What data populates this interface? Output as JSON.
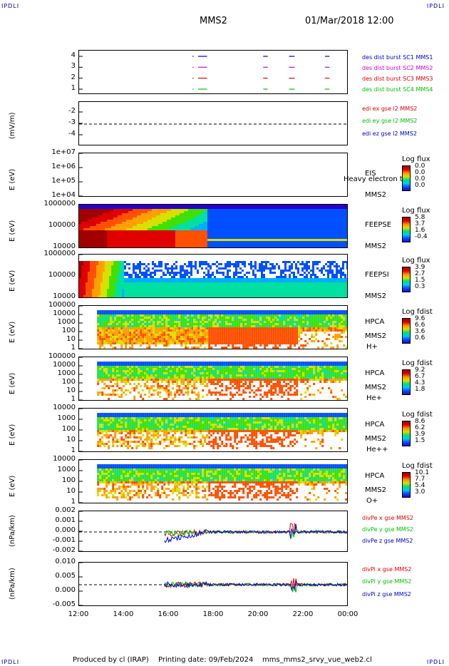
{
  "corners": {
    "top_left": "IPDLI",
    "top_right": "IPDLI",
    "bottom_left": "IPDLI",
    "bottom_right": "IPDLI"
  },
  "header": {
    "spacecraft": "MMS2",
    "datetime": "01/Mar/2018 12:00"
  },
  "footer": {
    "produced": "Produced by cl (IRAP)",
    "printed": "Printing date: 09/Feb/2024",
    "file": "mms_mms2_srvy_vue_web2.cl"
  },
  "colors": {
    "red": "#e00000",
    "green": "#00c000",
    "blue": "#0000c8",
    "magenta": "#d000d0"
  },
  "chart_data": [
    {
      "type": "scatter",
      "name": "des dist burst availability",
      "yticks": [
        "1",
        "2",
        "3",
        "4"
      ],
      "labels": [
        {
          "text": "des dist burst SC1 MMS1",
          "color": "#0000c8"
        },
        {
          "text": "des dist burst SC2 MMS2",
          "color": "#d000d0"
        },
        {
          "text": "des dist burst SC3 MMS3",
          "color": "#e00000"
        },
        {
          "text": "des dist burst SC4 MMS4",
          "color": "#00c000"
        }
      ],
      "segments_hours": [
        [
          17.05,
          17.1
        ],
        [
          17.3,
          17.7
        ],
        [
          20.2,
          20.4
        ],
        [
          21.35,
          21.6
        ],
        [
          22.95,
          23.15
        ]
      ]
    },
    {
      "type": "line",
      "ylabel": "(mV/m)",
      "yticks": [
        "-2",
        "-3",
        "-4"
      ],
      "labels": [
        {
          "text": "edi ex gse l2 MMS2",
          "color": "#e00000"
        },
        {
          "text": "edi ey gse l2 MMS2",
          "color": "#00c000"
        },
        {
          "text": "edi ez gse l2 MMS2",
          "color": "#0000c8"
        }
      ]
    },
    {
      "type": "heatmap",
      "ylabel": "E (eV)",
      "yticks": [
        "1e+07",
        "1e+06",
        "1e+05",
        "1e+04"
      ],
      "inst": "EIS",
      "sc": "MMS2",
      "note": "Heavy electron tof",
      "cbar_title": "Log flux",
      "cbar_ticks": [
        "0.0",
        "0.0",
        "0.0",
        "0.0"
      ]
    },
    {
      "type": "heatmap",
      "ylabel": "E (eV)",
      "yticks": [
        "1000000",
        "100000",
        "10000"
      ],
      "inst": "FEEPSE",
      "sc": "MMS2",
      "cbar_title": "Log flux",
      "cbar_ticks": [
        "5.8",
        "3.7",
        "1.6",
        "-0.4"
      ]
    },
    {
      "type": "heatmap",
      "ylabel": "E (eV)",
      "yticks": [
        "1000000",
        "100000",
        "10000"
      ],
      "inst": "FEEPSI",
      "sc": "MMS2",
      "cbar_title": "Log flux",
      "cbar_ticks": [
        "3.9",
        "2.7",
        "1.5",
        "0.3"
      ]
    },
    {
      "type": "heatmap",
      "ylabel": "E (eV)",
      "yticks": [
        "100000",
        "10000",
        "1000",
        "100",
        "10",
        "1"
      ],
      "inst": "HPCA",
      "sc": "MMS2",
      "species": "H+",
      "cbar_title": "Log fdist",
      "cbar_ticks": [
        "9.6",
        "6.6",
        "3.6",
        "0.6"
      ]
    },
    {
      "type": "heatmap",
      "ylabel": "E (eV)",
      "yticks": [
        "100000",
        "10000",
        "1000",
        "100",
        "10",
        "1"
      ],
      "inst": "HPCA",
      "sc": "MMS2",
      "species": "He+",
      "cbar_title": "Log fdist",
      "cbar_ticks": [
        "9.2",
        "6.7",
        "4.3",
        "1.8"
      ]
    },
    {
      "type": "heatmap",
      "ylabel": "E (eV)",
      "yticks": [
        "10000",
        "1000",
        "100",
        "10",
        "1"
      ],
      "inst": "HPCA",
      "sc": "MMS2",
      "species": "He++",
      "cbar_title": "Log fdist",
      "cbar_ticks": [
        "8.6",
        "6.2",
        "3.9",
        "1.5"
      ]
    },
    {
      "type": "heatmap",
      "ylabel": "E (eV)",
      "yticks": [
        "10000",
        "1000",
        "100",
        "10",
        "1"
      ],
      "inst": "HPCA",
      "sc": "MMS2",
      "species": "O+",
      "cbar_title": "Log fdist",
      "cbar_ticks": [
        "10.1",
        "7.7",
        "5.4",
        "3.0"
      ]
    },
    {
      "type": "line",
      "ylabel": "(nPa/km)",
      "yticks": [
        "0.002",
        "0.001",
        "0.000",
        "-0.001",
        "-0.002"
      ],
      "labels": [
        {
          "text": "divPe x gse MMS2",
          "color": "#e00000"
        },
        {
          "text": "divPe y gse MMS2",
          "color": "#00c000"
        },
        {
          "text": "divPe z gse MMS2",
          "color": "#0000c8"
        }
      ]
    },
    {
      "type": "line",
      "ylabel": "(nPa/km)",
      "yticks": [
        "0.010",
        "0.005",
        "0.000",
        "-0.005"
      ],
      "labels": [
        {
          "text": "divPi x gse MMS2",
          "color": "#e00000"
        },
        {
          "text": "divPi y gse MMS2",
          "color": "#00c000"
        },
        {
          "text": "divPi z gse MMS2",
          "color": "#0000c8"
        }
      ]
    }
  ],
  "xaxis": {
    "ticks": [
      "12:00",
      "14:00",
      "16:00",
      "18:00",
      "20:00",
      "22:00",
      "00:00"
    ]
  }
}
